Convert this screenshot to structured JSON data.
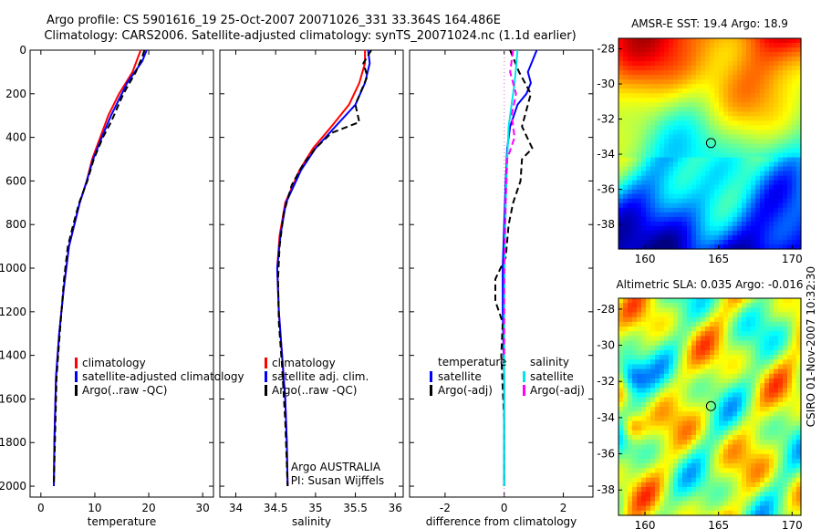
{
  "header": {
    "line1": "Argo profile: CS 5901616_19 25-Oct-2007 20071026_331 33.364S 164.486E",
    "line2": "Climatology: CARS2006. Satellite-adjusted climatology: synTS_20071024.nc (1.1d earlier)"
  },
  "side_label": "CSIRO 01-Nov-2007 10:32:30",
  "colors": {
    "climatology": "#ff0000",
    "satellite": "#0000ff",
    "argo": "#000000",
    "sal_satellite": "#00e5e5",
    "sal_argo": "#ff00ff"
  },
  "chart_data": [
    {
      "type": "line",
      "xlabel": "temperature",
      "xlim": [
        -2,
        32
      ],
      "xticks": [
        0,
        10,
        20,
        30
      ],
      "ylim": [
        2050,
        0
      ],
      "yticks": [
        0,
        200,
        400,
        600,
        800,
        1000,
        1200,
        1400,
        1600,
        1800,
        2000
      ],
      "legend": [
        "climatology",
        "satellite-adjusted climatology",
        "Argo(..raw -QC)"
      ],
      "series": [
        {
          "name": "climatology",
          "color": "#ff0000",
          "width": 2,
          "dash": "",
          "x": [
            18.5,
            17.0,
            14.5,
            12.5,
            11.0,
            9.5,
            8.5,
            7.2,
            6.2,
            5.2,
            4.2,
            3.4,
            2.8,
            2.5,
            2.4
          ],
          "y": [
            0,
            100,
            200,
            300,
            400,
            500,
            600,
            700,
            800,
            900,
            1100,
            1300,
            1500,
            1800,
            2000
          ]
        },
        {
          "name": "satellite-adjusted climatology",
          "color": "#0000ff",
          "width": 2,
          "dash": "",
          "x": [
            19.6,
            18.8,
            16.0,
            13.0,
            11.3,
            9.7,
            8.5,
            7.2,
            6.2,
            5.2,
            4.2,
            3.4,
            2.8,
            2.5,
            2.4
          ],
          "y": [
            0,
            50,
            150,
            300,
            400,
            500,
            600,
            700,
            800,
            900,
            1100,
            1300,
            1500,
            1800,
            2000
          ]
        },
        {
          "name": "Argo(..raw -QC)",
          "color": "#000000",
          "width": 2,
          "dash": "7,4",
          "x": [
            19.2,
            18.8,
            17.6,
            15.3,
            13.0,
            11.5,
            9.8,
            8.6,
            7.1,
            6.0,
            5.0,
            4.3,
            3.5,
            2.9,
            2.6,
            2.4
          ],
          "y": [
            0,
            30,
            100,
            200,
            330,
            400,
            500,
            600,
            700,
            800,
            900,
            1050,
            1300,
            1500,
            1800,
            2000
          ]
        }
      ]
    },
    {
      "type": "line",
      "xlabel": "salinity",
      "xlim": [
        33.8,
        36.1
      ],
      "xticks": [
        34,
        34.5,
        35,
        35.5,
        36
      ],
      "xtick_labels": [
        "34",
        "34.5",
        "35",
        "35.5",
        "36"
      ],
      "ylim": [
        2050,
        0
      ],
      "legend": [
        "climatology",
        "satellite adj. clim.",
        "Argo(..raw -QC)"
      ],
      "annotation": [
        "Argo AUSTRALIA",
        "PI: Susan Wijffels"
      ],
      "series": [
        {
          "name": "climatology",
          "color": "#ff0000",
          "width": 2,
          "dash": "",
          "x": [
            35.62,
            35.62,
            35.55,
            35.42,
            35.2,
            34.97,
            34.8,
            34.62,
            34.55,
            34.52,
            34.54,
            34.58,
            34.62,
            34.64,
            34.65
          ],
          "y": [
            0,
            60,
            150,
            250,
            350,
            450,
            550,
            700,
            850,
            1000,
            1200,
            1400,
            1600,
            1800,
            2000
          ]
        },
        {
          "name": "satellite adj. clim.",
          "color": "#0000ff",
          "width": 2,
          "dash": "",
          "x": [
            35.66,
            35.68,
            35.62,
            35.5,
            35.25,
            35.0,
            34.82,
            34.63,
            34.56,
            34.52,
            34.54,
            34.58,
            34.62,
            34.64,
            34.65
          ],
          "y": [
            0,
            60,
            150,
            250,
            350,
            450,
            550,
            700,
            850,
            1000,
            1200,
            1400,
            1600,
            1800,
            2000
          ]
        },
        {
          "name": "Argo(..raw -QC)",
          "color": "#000000",
          "width": 2,
          "dash": "7,4",
          "x": [
            35.7,
            35.6,
            35.65,
            35.5,
            35.55,
            35.2,
            35.0,
            34.85,
            34.7,
            34.6,
            34.55,
            34.53,
            34.54,
            34.58,
            34.62,
            34.65
          ],
          "y": [
            0,
            60,
            120,
            250,
            330,
            380,
            450,
            520,
            620,
            750,
            900,
            1050,
            1250,
            1450,
            1700,
            2000
          ]
        }
      ]
    },
    {
      "type": "line",
      "xlabel": "difference from climatology",
      "xlim": [
        -3.2,
        3.0
      ],
      "xticks": [
        -2,
        0,
        2
      ],
      "ylim": [
        2050,
        0
      ],
      "legend_left_title": "temperature",
      "legend_left": [
        "satellite",
        "Argo(-adj)"
      ],
      "legend_right_title": "salinity",
      "legend_right": [
        "satellite",
        "Argo(-adj)"
      ],
      "series": [
        {
          "name": "temperature satellite",
          "color": "#0000ff",
          "width": 2,
          "dash": "",
          "x": [
            1.1,
            0.8,
            0.9,
            0.75,
            0.45,
            0.2,
            0.1,
            0.05,
            0.0,
            -0.05,
            -0.05,
            0.0,
            0.0,
            0.0
          ],
          "y": [
            0,
            100,
            150,
            200,
            250,
            350,
            450,
            600,
            800,
            1000,
            1200,
            1500,
            1800,
            2000
          ]
        },
        {
          "name": "temperature Argo(-adj)",
          "color": "#000000",
          "width": 2,
          "dash": "7,4",
          "x": [
            0.2,
            0.5,
            0.9,
            0.6,
            0.95,
            0.6,
            0.55,
            0.3,
            0.15,
            0.05,
            -0.3,
            -0.3,
            -0.05,
            -0.1,
            0.0,
            0.0
          ],
          "y": [
            0,
            100,
            200,
            350,
            450,
            500,
            600,
            700,
            800,
            950,
            1050,
            1150,
            1250,
            1400,
            1700,
            2000
          ]
        },
        {
          "name": "salinity satellite",
          "color": "#00e5e5",
          "width": 2,
          "dash": "",
          "x": [
            0.45,
            0.4,
            0.35,
            0.25,
            0.15,
            0.1,
            0.05,
            0.02,
            0.0,
            0.0,
            0.0
          ],
          "y": [
            0,
            80,
            150,
            250,
            350,
            500,
            700,
            900,
            1200,
            1600,
            2000
          ]
        },
        {
          "name": "salinity Argo(-adj)",
          "color": "#ff00ff",
          "width": 2,
          "dash": "7,4",
          "x": [
            0.3,
            0.2,
            0.4,
            0.25,
            0.35,
            0.1,
            0.05,
            0.0,
            0.0
          ],
          "y": [
            0,
            100,
            200,
            300,
            400,
            500,
            700,
            1000,
            1400
          ]
        }
      ]
    },
    {
      "type": "heatmap",
      "title": "AMSR-E SST: 19.4 Argo: 18.9",
      "xticks": [
        160,
        165,
        170
      ],
      "yticks": [
        -28,
        -30,
        -32,
        -34,
        -36,
        -38
      ],
      "xlim": [
        158.2,
        170.6
      ],
      "ylim": [
        -39.4,
        -27.4
      ],
      "marker": {
        "lon": 164.486,
        "lat": -33.364
      }
    },
    {
      "type": "heatmap",
      "title": "Altimetric SLA: 0.035 Argo: -0.016",
      "xticks": [
        160,
        165,
        170
      ],
      "yticks": [
        -28,
        -30,
        -32,
        -34,
        -36,
        -38
      ],
      "xlim": [
        158.2,
        170.6
      ],
      "ylim": [
        -39.4,
        -27.4
      ],
      "marker": {
        "lon": 164.486,
        "lat": -33.364
      }
    }
  ]
}
